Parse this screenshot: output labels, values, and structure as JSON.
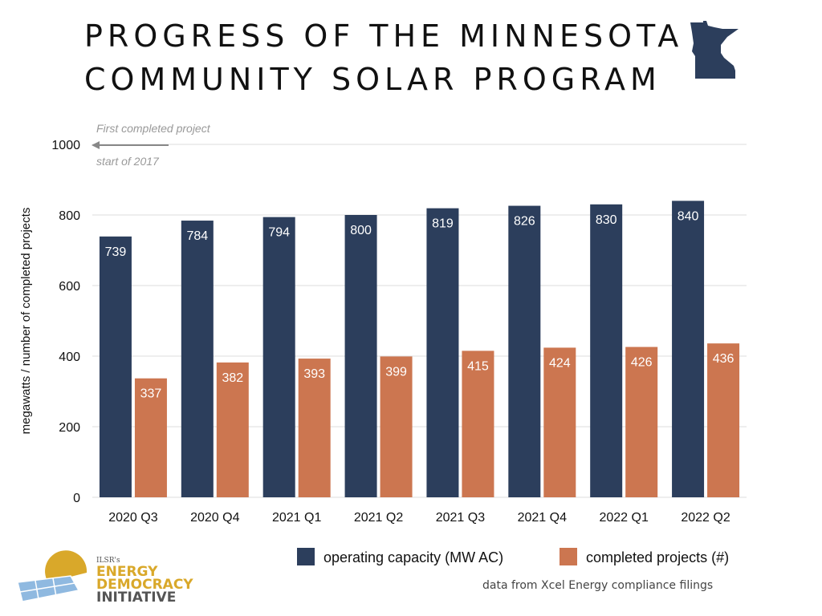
{
  "title_lines": [
    "PROGRESS OF THE MINNESOTA",
    "COMMUNITY SOLAR PROGRAM"
  ],
  "state_icon": "minnesota-state-silhouette",
  "colors": {
    "capacity": "#2c3e5c",
    "projects": "#cc7650",
    "state": "#2c3e5c"
  },
  "credit": "data from Xcel Energy compliance filings",
  "logo": {
    "org": "ILSR's",
    "line1": "ENERGY",
    "line2": "DEMOCRACY",
    "line3": "INITIATIVE"
  },
  "chart_data": {
    "type": "bar",
    "title": "PROGRESS OF THE MINNESOTA COMMUNITY SOLAR PROGRAM",
    "categories": [
      "2020 Q3",
      "2020 Q4",
      "2021 Q1",
      "2021 Q2",
      "2021 Q3",
      "2021 Q4",
      "2022 Q1",
      "2022 Q2"
    ],
    "series": [
      {
        "name": "operating capacity (MW AC)",
        "values": [
          739,
          784,
          794,
          800,
          819,
          826,
          830,
          840
        ]
      },
      {
        "name": "completed projects (#)",
        "values": [
          337,
          382,
          393,
          399,
          415,
          424,
          426,
          436
        ]
      }
    ],
    "ylabel": "megawatts / number of completed projects",
    "xlabel": "",
    "ylim": [
      0,
      1000
    ],
    "yticks": [
      0,
      200,
      400,
      600,
      800,
      1000
    ],
    "grid": true,
    "legend": "bottom",
    "annotation": {
      "above": "First completed project",
      "below": "start of 2017"
    }
  }
}
